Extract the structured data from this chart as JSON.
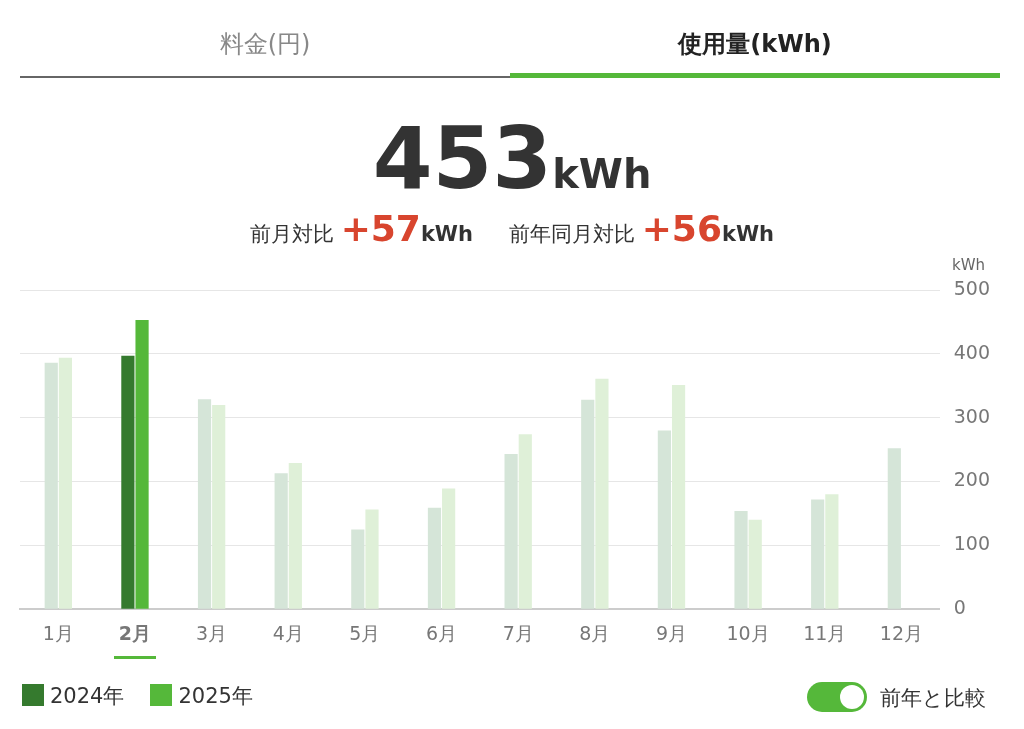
{
  "chart_data": {
    "type": "bar",
    "title": "453kWh",
    "ylabel": "kWh",
    "annotations": [
      "料金(円)",
      "使用量(kWh)",
      "前月対比 +57kWh",
      "前年同月対比 +56kWh",
      "前年と比較"
    ],
    "categories": [
      "1月",
      "2月",
      "3月",
      "4月",
      "5月",
      "6月",
      "7月",
      "8月",
      "9月",
      "10月",
      "11月",
      "12月"
    ],
    "series": [
      {
        "name": "2024年",
        "color": "#357a2e",
        "colors": [
          "#d5e5d8",
          "#357a2e",
          "#d5e5d8",
          "#d5e5d8",
          "#d5e5d8",
          "#d5e5d8",
          "#d5e5d8",
          "#d5e5d8",
          "#d5e5d8",
          "#d5e5d8",
          "#d5e5d8",
          "#d5e5d8"
        ],
        "values": [
          386,
          397,
          329,
          213,
          125,
          159,
          243,
          328,
          280,
          154,
          172,
          252
        ]
      },
      {
        "name": "2025年",
        "color": "#55b83a",
        "colors": [
          "#dff0d8",
          "#55b83a",
          "#dff0d8",
          "#dff0d8",
          "#dff0d8",
          "#dff0d8",
          "#dff0d8",
          "#dff0d8",
          "#dff0d8",
          "#dff0d8",
          "#dff0d8",
          "#dff0d8"
        ],
        "values": [
          394,
          453,
          320,
          229,
          156,
          189,
          274,
          361,
          351,
          140,
          180,
          null
        ]
      }
    ],
    "ylim": [
      0,
      500
    ],
    "yticks": [
      0,
      100,
      200,
      300,
      400,
      500
    ],
    "grid": "y",
    "legend": "bottom left"
  }
}
